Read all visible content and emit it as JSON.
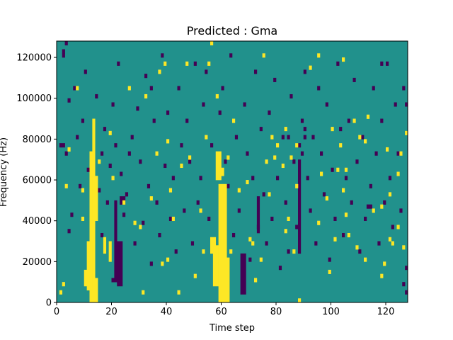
{
  "chart_data": {
    "type": "heatmap",
    "title": "Predicted : Gma",
    "xlabel": "Time step",
    "ylabel": "Frequency (Hz)",
    "xlim": [
      0,
      128
    ],
    "ylim": [
      0,
      128000
    ],
    "xticks": [
      0,
      20,
      40,
      60,
      80,
      100,
      120
    ],
    "yticks": [
      0,
      20000,
      40000,
      60000,
      80000,
      100000,
      120000
    ],
    "xtick_labels": [
      "0",
      "20",
      "40",
      "60",
      "80",
      "100",
      "120"
    ],
    "ytick_labels": [
      "0",
      "20000",
      "40000",
      "60000",
      "80000",
      "100000",
      "120000"
    ],
    "grid": false,
    "n_rows": 64,
    "n_cols": 128,
    "row_height_hz": 2000,
    "background_value": 0,
    "colors": {
      "-1": "#440154",
      "0": "#21918c",
      "1": "#fde725"
    },
    "yellow_blocks": [
      {
        "t0": 12,
        "t1": 14,
        "f0": 0,
        "f1": 74000
      },
      {
        "t0": 11,
        "t1": 13,
        "f0": 6000,
        "f1": 30000
      },
      {
        "t0": 13,
        "t1": 15,
        "f0": 40000,
        "f1": 62000
      },
      {
        "t0": 10,
        "t1": 12,
        "f0": 8000,
        "f1": 16000
      },
      {
        "t0": 13,
        "t1": 14,
        "f0": 74000,
        "f1": 90000
      },
      {
        "t0": 14,
        "t1": 15,
        "f0": 0,
        "f1": 12000
      },
      {
        "t0": 59,
        "t1": 62,
        "f0": 0,
        "f1": 58000
      },
      {
        "t0": 57,
        "t1": 59,
        "f0": 8000,
        "f1": 28000
      },
      {
        "t0": 58,
        "t1": 60,
        "f0": 60000,
        "f1": 74000
      },
      {
        "t0": 56,
        "t1": 58,
        "f0": 24000,
        "f1": 32000
      },
      {
        "t0": 62,
        "t1": 63,
        "f0": 0,
        "f1": 22000
      },
      {
        "t0": 60,
        "t1": 61,
        "f0": 62000,
        "f1": 66000
      },
      {
        "t0": 19,
        "t1": 20,
        "f0": 20000,
        "f1": 30000
      },
      {
        "t0": 17,
        "t1": 18,
        "f0": 24000,
        "f1": 32000
      }
    ],
    "purple_blocks": [
      {
        "t0": 67,
        "t1": 69,
        "f0": 4000,
        "f1": 24000
      },
      {
        "t0": 22,
        "t1": 24,
        "f0": 8000,
        "f1": 30000
      },
      {
        "t0": 21,
        "t1": 22,
        "f0": 10000,
        "f1": 50000
      },
      {
        "t0": 23,
        "t1": 25,
        "f0": 48000,
        "f1": 52000
      },
      {
        "t0": 88,
        "t1": 89,
        "f0": 24000,
        "f1": 70000
      },
      {
        "t0": 73,
        "t1": 74,
        "f0": 34000,
        "f1": 52000
      },
      {
        "t0": 113,
        "t1": 115,
        "f0": 46000,
        "f1": 48000
      },
      {
        "t0": 127,
        "t1": 128,
        "f0": 96000,
        "f1": 98000
      }
    ],
    "yellow_cells": [
      [
        2,
        4
      ],
      [
        3,
        28
      ],
      [
        4,
        37
      ],
      [
        1,
        2
      ],
      [
        9,
        20
      ],
      [
        9,
        27
      ],
      [
        19,
        41
      ],
      [
        20,
        30
      ],
      [
        24,
        24
      ],
      [
        26,
        52
      ],
      [
        30,
        18
      ],
      [
        31,
        2
      ],
      [
        32,
        50
      ],
      [
        34,
        25
      ],
      [
        36,
        36
      ],
      [
        37,
        56
      ],
      [
        38,
        9
      ],
      [
        39,
        58
      ],
      [
        40,
        39
      ],
      [
        40,
        10
      ],
      [
        41,
        27
      ],
      [
        42,
        20
      ],
      [
        44,
        2
      ],
      [
        47,
        58
      ],
      [
        48,
        35
      ],
      [
        52,
        22
      ],
      [
        53,
        12
      ],
      [
        54,
        40
      ],
      [
        55,
        58
      ],
      [
        56,
        63
      ],
      [
        58,
        50
      ],
      [
        62,
        35
      ],
      [
        63,
        12
      ],
      [
        66,
        27
      ],
      [
        69,
        29
      ],
      [
        70,
        15
      ],
      [
        71,
        14
      ],
      [
        72,
        5
      ],
      [
        74,
        10
      ],
      [
        76,
        34
      ],
      [
        77,
        26
      ],
      [
        78,
        40
      ],
      [
        79,
        35
      ],
      [
        80,
        38
      ],
      [
        82,
        33
      ],
      [
        83,
        42
      ],
      [
        84,
        20
      ],
      [
        85,
        35
      ],
      [
        86,
        12
      ],
      [
        87,
        38
      ],
      [
        87,
        28
      ],
      [
        88,
        0
      ],
      [
        92,
        57
      ],
      [
        95,
        19
      ],
      [
        96,
        31
      ],
      [
        98,
        25
      ],
      [
        99,
        7
      ],
      [
        100,
        42
      ],
      [
        101,
        15
      ],
      [
        102,
        32
      ],
      [
        103,
        38
      ],
      [
        104,
        59
      ],
      [
        104,
        27
      ],
      [
        105,
        21
      ],
      [
        106,
        16
      ],
      [
        108,
        44
      ],
      [
        109,
        13
      ],
      [
        110,
        40
      ],
      [
        112,
        10
      ],
      [
        113,
        45
      ],
      [
        115,
        22
      ],
      [
        118,
        23
      ],
      [
        118,
        6
      ],
      [
        119,
        9
      ],
      [
        120,
        37
      ],
      [
        121,
        26
      ],
      [
        122,
        14
      ],
      [
        124,
        18
      ],
      [
        124,
        31
      ],
      [
        125,
        36
      ],
      [
        126,
        13
      ],
      [
        127,
        41
      ],
      [
        7,
        52
      ],
      [
        15,
        34
      ],
      [
        28,
        19
      ],
      [
        45,
        33
      ],
      [
        50,
        6
      ],
      [
        64,
        44
      ],
      [
        75,
        60
      ],
      [
        83,
        17
      ],
      [
        95,
        60
      ],
      [
        105,
        32
      ],
      [
        112,
        39
      ],
      [
        121,
        15
      ]
    ],
    "purple_cells": [
      [
        1,
        38
      ],
      [
        2,
        60
      ],
      [
        2,
        61
      ],
      [
        3,
        63
      ],
      [
        4,
        49
      ],
      [
        4,
        17
      ],
      [
        5,
        21
      ],
      [
        6,
        52
      ],
      [
        7,
        40
      ],
      [
        8,
        28
      ],
      [
        9,
        44
      ],
      [
        10,
        56
      ],
      [
        11,
        32
      ],
      [
        12,
        11
      ],
      [
        13,
        6
      ],
      [
        14,
        50
      ],
      [
        15,
        27
      ],
      [
        16,
        36
      ],
      [
        16,
        16
      ],
      [
        17,
        42
      ],
      [
        18,
        24
      ],
      [
        19,
        33
      ],
      [
        20,
        48
      ],
      [
        20,
        5
      ],
      [
        21,
        38
      ],
      [
        22,
        58
      ],
      [
        23,
        31
      ],
      [
        24,
        21
      ],
      [
        25,
        26
      ],
      [
        26,
        36
      ],
      [
        27,
        40
      ],
      [
        28,
        14
      ],
      [
        29,
        47
      ],
      [
        30,
        34
      ],
      [
        31,
        19
      ],
      [
        32,
        55
      ],
      [
        33,
        28
      ],
      [
        34,
        9
      ],
      [
        35,
        44
      ],
      [
        36,
        24
      ],
      [
        37,
        16
      ],
      [
        38,
        60
      ],
      [
        39,
        33
      ],
      [
        40,
        46
      ],
      [
        41,
        20
      ],
      [
        42,
        30
      ],
      [
        43,
        12
      ],
      [
        44,
        52
      ],
      [
        45,
        38
      ],
      [
        46,
        22
      ],
      [
        47,
        44
      ],
      [
        48,
        34
      ],
      [
        49,
        14
      ],
      [
        50,
        58
      ],
      [
        51,
        24
      ],
      [
        52,
        30
      ],
      [
        53,
        48
      ],
      [
        54,
        56
      ],
      [
        55,
        20
      ],
      [
        56,
        38
      ],
      [
        57,
        12
      ],
      [
        59,
        46
      ],
      [
        60,
        52
      ],
      [
        61,
        34
      ],
      [
        62,
        28
      ],
      [
        63,
        60
      ],
      [
        64,
        16
      ],
      [
        65,
        40
      ],
      [
        66,
        22
      ],
      [
        68,
        48
      ],
      [
        69,
        36
      ],
      [
        70,
        10
      ],
      [
        71,
        30
      ],
      [
        72,
        56
      ],
      [
        73,
        18
      ],
      [
        74,
        42
      ],
      [
        75,
        26
      ],
      [
        76,
        14
      ],
      [
        77,
        46
      ],
      [
        78,
        20
      ],
      [
        79,
        54
      ],
      [
        80,
        30
      ],
      [
        81,
        8
      ],
      [
        82,
        40
      ],
      [
        83,
        24
      ],
      [
        84,
        12
      ],
      [
        85,
        50
      ],
      [
        86,
        34
      ],
      [
        87,
        18
      ],
      [
        89,
        44
      ],
      [
        90,
        56
      ],
      [
        91,
        30
      ],
      [
        92,
        22
      ],
      [
        93,
        40
      ],
      [
        94,
        14
      ],
      [
        95,
        52
      ],
      [
        96,
        36
      ],
      [
        97,
        26
      ],
      [
        98,
        48
      ],
      [
        99,
        10
      ],
      [
        100,
        32
      ],
      [
        101,
        20
      ],
      [
        102,
        58
      ],
      [
        103,
        42
      ],
      [
        104,
        16
      ],
      [
        105,
        30
      ],
      [
        106,
        44
      ],
      [
        107,
        24
      ],
      [
        108,
        54
      ],
      [
        109,
        34
      ],
      [
        110,
        12
      ],
      [
        111,
        40
      ],
      [
        112,
        20
      ],
      [
        114,
        28
      ],
      [
        115,
        52
      ],
      [
        116,
        36
      ],
      [
        117,
        14
      ],
      [
        118,
        44
      ],
      [
        119,
        24
      ],
      [
        120,
        58
      ],
      [
        121,
        30
      ],
      [
        122,
        18
      ],
      [
        123,
        48
      ],
      [
        124,
        36
      ],
      [
        125,
        22
      ],
      [
        126,
        52
      ],
      [
        127,
        8
      ],
      [
        127,
        2
      ],
      [
        126,
        4
      ],
      [
        118,
        58
      ],
      [
        84,
        40
      ],
      [
        34,
        52
      ],
      [
        2,
        38
      ],
      [
        3,
        36
      ],
      [
        90,
        40
      ],
      [
        90,
        42
      ],
      [
        88,
        38
      ],
      [
        89,
        36
      ]
    ]
  }
}
